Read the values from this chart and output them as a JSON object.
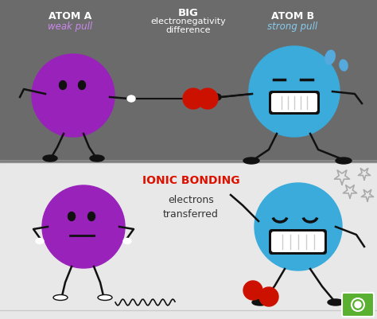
{
  "bg_top": "#6b6b6b",
  "bg_bottom": "#e8e8e8",
  "atom_a_color": "#9922bb",
  "atom_b_color": "#3aabdb",
  "electron_color": "#cc1100",
  "rope_color": "#111111",
  "title_color": "#ffffff",
  "label_a_color": "#cc88ee",
  "label_b_color": "#88ccee",
  "ionic_label_color": "#dd1100",
  "dark_text": "#333333",
  "atom_a_label": "ATOM A",
  "atom_a_sublabel": "weak pull",
  "atom_b_label": "ATOM B",
  "atom_b_sublabel": "strong pull",
  "center_label_line1": "BIG",
  "center_label_line2": "electronegativity",
  "center_label_line3": "difference",
  "ionic_title": "IONIC BONDING",
  "ionic_sub": "electrons\ntransferred",
  "logo_green": "#5ab030",
  "sweat_color": "#55aadd",
  "white": "#ffffff",
  "dark": "#111111",
  "teeth_div": "#999999"
}
